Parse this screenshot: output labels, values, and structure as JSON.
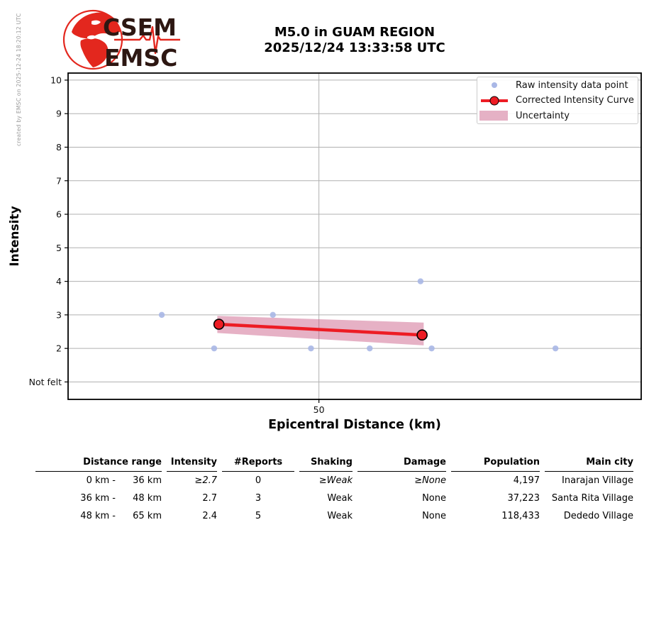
{
  "meta": {
    "created_by": "created by EMSC on 2025-12-24 18:20:12 UTC"
  },
  "logo": {
    "top": "CSEM",
    "bottom": "EMSC",
    "red": "#e3271e",
    "text_color": "#2d1712"
  },
  "title": {
    "line1": "M5.0 in GUAM REGION",
    "line2": "2025/12/24 13:33:58 UTC"
  },
  "chart_data": {
    "type": "line",
    "title": "M5.0 in GUAM REGION 2025/12/24 13:33:58 UTC",
    "xlabel": "Epicentral Distance (km)",
    "ylabel": "Intensity",
    "xlim": [
      34.2,
      70.3
    ],
    "ylim": [
      0.48,
      10.21
    ],
    "grid": true,
    "xticks": [
      {
        "v": 50,
        "label": "50"
      }
    ],
    "yticks": [
      {
        "v": 10,
        "label": "10"
      },
      {
        "v": 9,
        "label": "9"
      },
      {
        "v": 8,
        "label": "8"
      },
      {
        "v": 7,
        "label": "7"
      },
      {
        "v": 6,
        "label": "6"
      },
      {
        "v": 5,
        "label": "5"
      },
      {
        "v": 4,
        "label": "4"
      },
      {
        "v": 3,
        "label": "3"
      },
      {
        "v": 2,
        "label": "2"
      },
      {
        "v": 1,
        "label": "Not felt"
      }
    ],
    "raw_points": [
      {
        "km": 40.1,
        "intensity": 3
      },
      {
        "km": 43.4,
        "intensity": 2
      },
      {
        "km": 47.1,
        "intensity": 3
      },
      {
        "km": 49.5,
        "intensity": 2
      },
      {
        "km": 53.2,
        "intensity": 2
      },
      {
        "km": 56.4,
        "intensity": 4
      },
      {
        "km": 57.1,
        "intensity": 2
      },
      {
        "km": 64.9,
        "intensity": 2
      }
    ],
    "corrected_curve": [
      {
        "km": 43.7,
        "intensity": 2.72
      },
      {
        "km": 56.5,
        "intensity": 2.4
      }
    ],
    "uncertainty_band": {
      "upper": [
        {
          "km": 43.6,
          "intensity": 2.97
        },
        {
          "km": 56.6,
          "intensity": 2.77
        }
      ],
      "lower": [
        {
          "km": 43.6,
          "intensity": 2.46
        },
        {
          "km": 56.6,
          "intensity": 2.09
        }
      ]
    },
    "legend": {
      "position": "upper right",
      "items": [
        {
          "label": "Raw intensity data point",
          "marker": "dot"
        },
        {
          "label": "Corrected Intensity Curve",
          "marker": "line-circle"
        },
        {
          "label": "Uncertainty",
          "marker": "band"
        }
      ]
    },
    "colors": {
      "raw_point": "#a9b7e6",
      "curve": "#ed1c24",
      "band": "#c7537f",
      "band_opacity": 0.45,
      "grid": "#b0b0b0",
      "axis": "#000000"
    }
  },
  "table": {
    "headers": {
      "distance_range": "Distance range",
      "intensity": "Intensity",
      "reports": "#Reports",
      "shaking": "Shaking",
      "damage": "Damage",
      "population": "Population",
      "main_city": "Main city"
    },
    "rows": [
      {
        "range_from": "0 km -",
        "range_to": "36 km",
        "intensity": "≥2.7",
        "reports": "0",
        "shaking": "≥Weak",
        "damage": "≥None",
        "population": "4,197",
        "city": "Inarajan Village"
      },
      {
        "range_from": "36 km -",
        "range_to": "48 km",
        "intensity": "2.7",
        "reports": "3",
        "shaking": "Weak",
        "damage": "None",
        "population": "37,223",
        "city": "Santa Rita Village"
      },
      {
        "range_from": "48 km -",
        "range_to": "65 km",
        "intensity": "2.4",
        "reports": "5",
        "shaking": "Weak",
        "damage": "None",
        "population": "118,433",
        "city": "Dededo Village"
      }
    ]
  }
}
